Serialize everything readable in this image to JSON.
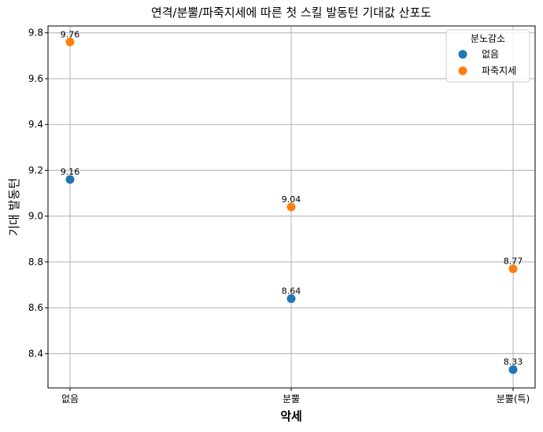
{
  "chart_data": {
    "type": "scatter",
    "title": "연격/분뿔/파죽지세에 따른 첫 스킬 발동턴 기대값 산포도",
    "xlabel": "악세",
    "ylabel": "기대 발동턴",
    "categories": [
      "없음",
      "분뿔",
      "분뿔(특)"
    ],
    "ylim": [
      8.25,
      9.83
    ],
    "yticks": [
      "8.4",
      "8.6",
      "8.8",
      "9.0",
      "9.2",
      "9.4",
      "9.6",
      "9.8"
    ],
    "grid": true,
    "legend": {
      "title": "분노감소",
      "placement": "top-right"
    },
    "series": [
      {
        "name": "없음",
        "color": "#1f77b4",
        "values": [
          9.16,
          8.64,
          8.33
        ],
        "labels": [
          "9.16",
          "8.64",
          "8.33"
        ]
      },
      {
        "name": "파죽지세",
        "color": "#ff7f0e",
        "values": [
          9.76,
          9.04,
          8.77
        ],
        "labels": [
          "9.76",
          "9.04",
          "8.77"
        ]
      }
    ]
  }
}
